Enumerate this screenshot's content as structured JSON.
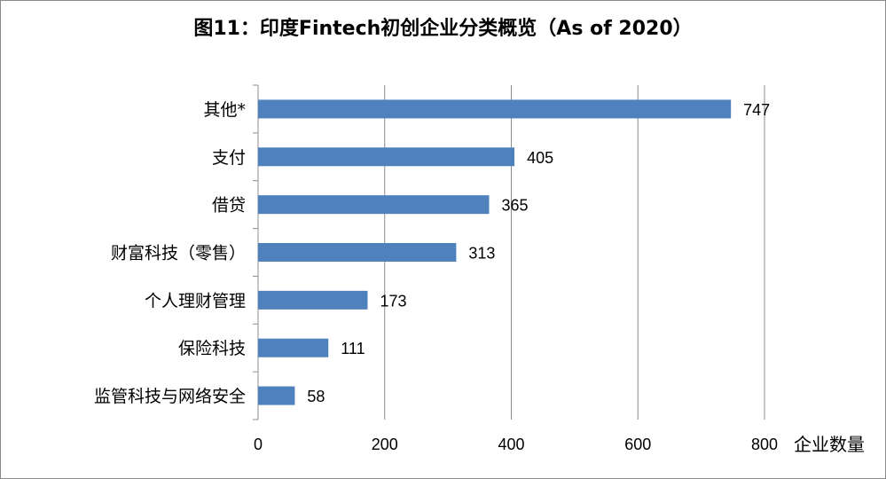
{
  "chart_data": {
    "type": "bar",
    "orientation": "horizontal",
    "title": "图11：印度Fintech初创企业分类概览（As of 2020）",
    "xlabel": "企业数量",
    "ylabel": "",
    "categories": [
      "其他*",
      "支付",
      "借贷",
      "财富科技（零售）",
      "个人理财管理",
      "保险科技",
      "监管科技与网络安全"
    ],
    "values": [
      747,
      405,
      365,
      313,
      173,
      111,
      58
    ],
    "xlim": [
      0,
      800
    ],
    "xticks": [
      0,
      200,
      400,
      600,
      800
    ],
    "grid": true,
    "legend": "none",
    "bar_color": "#4f81bd"
  }
}
